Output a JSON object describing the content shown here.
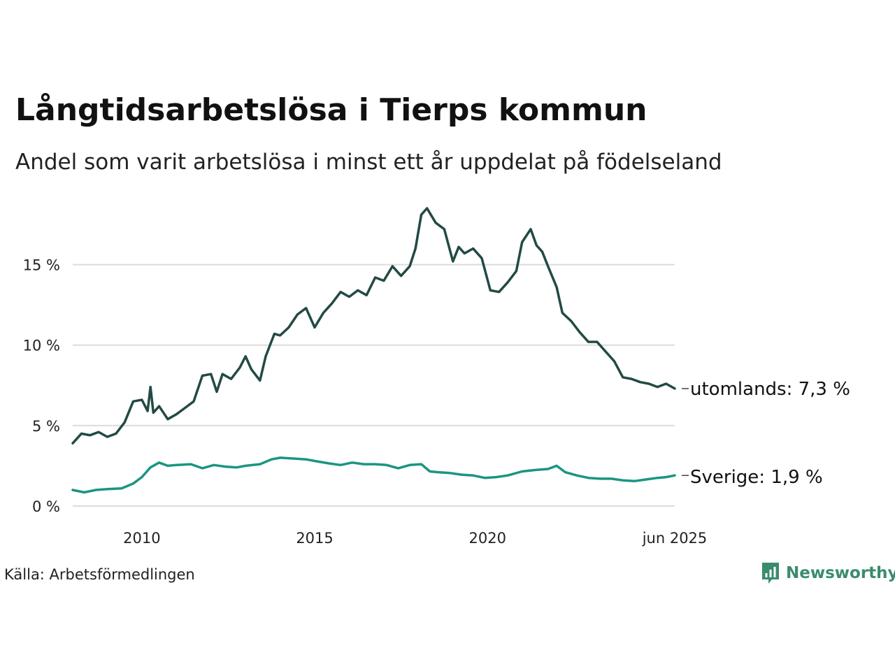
{
  "header": {
    "title": "Långtidsarbetslösa i Tierps kommun",
    "subtitle": "Andel som varit arbetslösa i minst ett år uppdelat på födelseland"
  },
  "footer": {
    "source": "Källa: Arbetsförmedlingen",
    "brand": "Newsworthy",
    "brand_icon": "newsworthy-logo-icon"
  },
  "colors": {
    "utomlands": "#234a45",
    "sverige": "#1b9582",
    "grid": "#dcdcdc",
    "brand": "#3a8c6c"
  },
  "chart_data": {
    "type": "line",
    "x_unit": "month",
    "xlim": [
      "2008-01",
      "2025-06"
    ],
    "ylim": [
      0,
      18.5
    ],
    "yticks": [
      0,
      5,
      10,
      15
    ],
    "ytick_labels": [
      "0 %",
      "5 %",
      "10 %",
      "15 %"
    ],
    "xticks": [
      "2010-01",
      "2015-01",
      "2020-01",
      "2025-06"
    ],
    "xtick_labels": [
      "2010",
      "2015",
      "2020",
      "jun 2025"
    ],
    "grid": true,
    "legend": "end-labels",
    "series": [
      {
        "name": "utomlands",
        "end_label": "utomlands: 7,3 %",
        "color": "#234a45",
        "points": [
          [
            "2008-01",
            3.9
          ],
          [
            "2008-04",
            4.5
          ],
          [
            "2008-07",
            4.4
          ],
          [
            "2008-10",
            4.6
          ],
          [
            "2009-01",
            4.3
          ],
          [
            "2009-04",
            4.5
          ],
          [
            "2009-07",
            5.2
          ],
          [
            "2009-10",
            6.5
          ],
          [
            "2010-01",
            6.6
          ],
          [
            "2010-03",
            5.9
          ],
          [
            "2010-04",
            7.4
          ],
          [
            "2010-05",
            5.8
          ],
          [
            "2010-07",
            6.2
          ],
          [
            "2010-10",
            5.4
          ],
          [
            "2011-01",
            5.7
          ],
          [
            "2011-04",
            6.1
          ],
          [
            "2011-07",
            6.5
          ],
          [
            "2011-10",
            8.1
          ],
          [
            "2012-01",
            8.2
          ],
          [
            "2012-03",
            7.1
          ],
          [
            "2012-05",
            8.2
          ],
          [
            "2012-08",
            7.9
          ],
          [
            "2012-11",
            8.6
          ],
          [
            "2013-01",
            9.3
          ],
          [
            "2013-03",
            8.5
          ],
          [
            "2013-06",
            7.8
          ],
          [
            "2013-08",
            9.3
          ],
          [
            "2013-11",
            10.7
          ],
          [
            "2014-01",
            10.6
          ],
          [
            "2014-04",
            11.1
          ],
          [
            "2014-07",
            11.9
          ],
          [
            "2014-10",
            12.3
          ],
          [
            "2015-01",
            11.1
          ],
          [
            "2015-04",
            12.0
          ],
          [
            "2015-07",
            12.6
          ],
          [
            "2015-10",
            13.3
          ],
          [
            "2016-01",
            13.0
          ],
          [
            "2016-04",
            13.4
          ],
          [
            "2016-07",
            13.1
          ],
          [
            "2016-10",
            14.2
          ],
          [
            "2017-01",
            14.0
          ],
          [
            "2017-04",
            14.9
          ],
          [
            "2017-07",
            14.3
          ],
          [
            "2017-10",
            14.9
          ],
          [
            "2017-12",
            16.0
          ],
          [
            "2018-02",
            18.1
          ],
          [
            "2018-04",
            18.5
          ],
          [
            "2018-07",
            17.6
          ],
          [
            "2018-10",
            17.2
          ],
          [
            "2019-01",
            15.2
          ],
          [
            "2019-03",
            16.1
          ],
          [
            "2019-05",
            15.7
          ],
          [
            "2019-08",
            16.0
          ],
          [
            "2019-11",
            15.4
          ],
          [
            "2020-02",
            13.4
          ],
          [
            "2020-05",
            13.3
          ],
          [
            "2020-08",
            13.9
          ],
          [
            "2020-11",
            14.6
          ],
          [
            "2021-01",
            16.4
          ],
          [
            "2021-04",
            17.2
          ],
          [
            "2021-06",
            16.2
          ],
          [
            "2021-08",
            15.8
          ],
          [
            "2021-10",
            14.9
          ],
          [
            "2022-01",
            13.6
          ],
          [
            "2022-03",
            12.0
          ],
          [
            "2022-06",
            11.5
          ],
          [
            "2022-09",
            10.8
          ],
          [
            "2022-12",
            10.2
          ],
          [
            "2023-03",
            10.2
          ],
          [
            "2023-06",
            9.6
          ],
          [
            "2023-09",
            9.0
          ],
          [
            "2023-12",
            8.0
          ],
          [
            "2024-03",
            7.9
          ],
          [
            "2024-06",
            7.7
          ],
          [
            "2024-09",
            7.6
          ],
          [
            "2024-12",
            7.4
          ],
          [
            "2025-03",
            7.6
          ],
          [
            "2025-06",
            7.3
          ]
        ]
      },
      {
        "name": "Sverige",
        "end_label": "Sverige: 1,9 %",
        "color": "#1b9582",
        "points": [
          [
            "2008-01",
            1.0
          ],
          [
            "2008-05",
            0.85
          ],
          [
            "2008-09",
            1.0
          ],
          [
            "2009-01",
            1.05
          ],
          [
            "2009-06",
            1.1
          ],
          [
            "2009-10",
            1.4
          ],
          [
            "2010-01",
            1.8
          ],
          [
            "2010-04",
            2.4
          ],
          [
            "2010-07",
            2.7
          ],
          [
            "2010-10",
            2.5
          ],
          [
            "2011-01",
            2.55
          ],
          [
            "2011-06",
            2.6
          ],
          [
            "2011-10",
            2.35
          ],
          [
            "2012-02",
            2.55
          ],
          [
            "2012-06",
            2.45
          ],
          [
            "2012-10",
            2.4
          ],
          [
            "2013-01",
            2.5
          ],
          [
            "2013-06",
            2.6
          ],
          [
            "2013-10",
            2.9
          ],
          [
            "2014-01",
            3.0
          ],
          [
            "2014-06",
            2.95
          ],
          [
            "2014-10",
            2.9
          ],
          [
            "2015-01",
            2.8
          ],
          [
            "2015-06",
            2.65
          ],
          [
            "2015-10",
            2.55
          ],
          [
            "2016-02",
            2.7
          ],
          [
            "2016-06",
            2.6
          ],
          [
            "2016-10",
            2.6
          ],
          [
            "2017-02",
            2.55
          ],
          [
            "2017-06",
            2.35
          ],
          [
            "2017-10",
            2.55
          ],
          [
            "2018-02",
            2.6
          ],
          [
            "2018-05",
            2.15
          ],
          [
            "2018-08",
            2.1
          ],
          [
            "2018-12",
            2.05
          ],
          [
            "2019-04",
            1.95
          ],
          [
            "2019-08",
            1.9
          ],
          [
            "2019-12",
            1.75
          ],
          [
            "2020-04",
            1.8
          ],
          [
            "2020-08",
            1.9
          ],
          [
            "2021-01",
            2.15
          ],
          [
            "2021-06",
            2.25
          ],
          [
            "2021-10",
            2.3
          ],
          [
            "2022-01",
            2.5
          ],
          [
            "2022-04",
            2.1
          ],
          [
            "2022-08",
            1.9
          ],
          [
            "2022-12",
            1.75
          ],
          [
            "2023-04",
            1.7
          ],
          [
            "2023-08",
            1.7
          ],
          [
            "2023-12",
            1.6
          ],
          [
            "2024-04",
            1.55
          ],
          [
            "2024-08",
            1.65
          ],
          [
            "2024-12",
            1.75
          ],
          [
            "2025-03",
            1.8
          ],
          [
            "2025-06",
            1.9
          ]
        ]
      }
    ]
  }
}
